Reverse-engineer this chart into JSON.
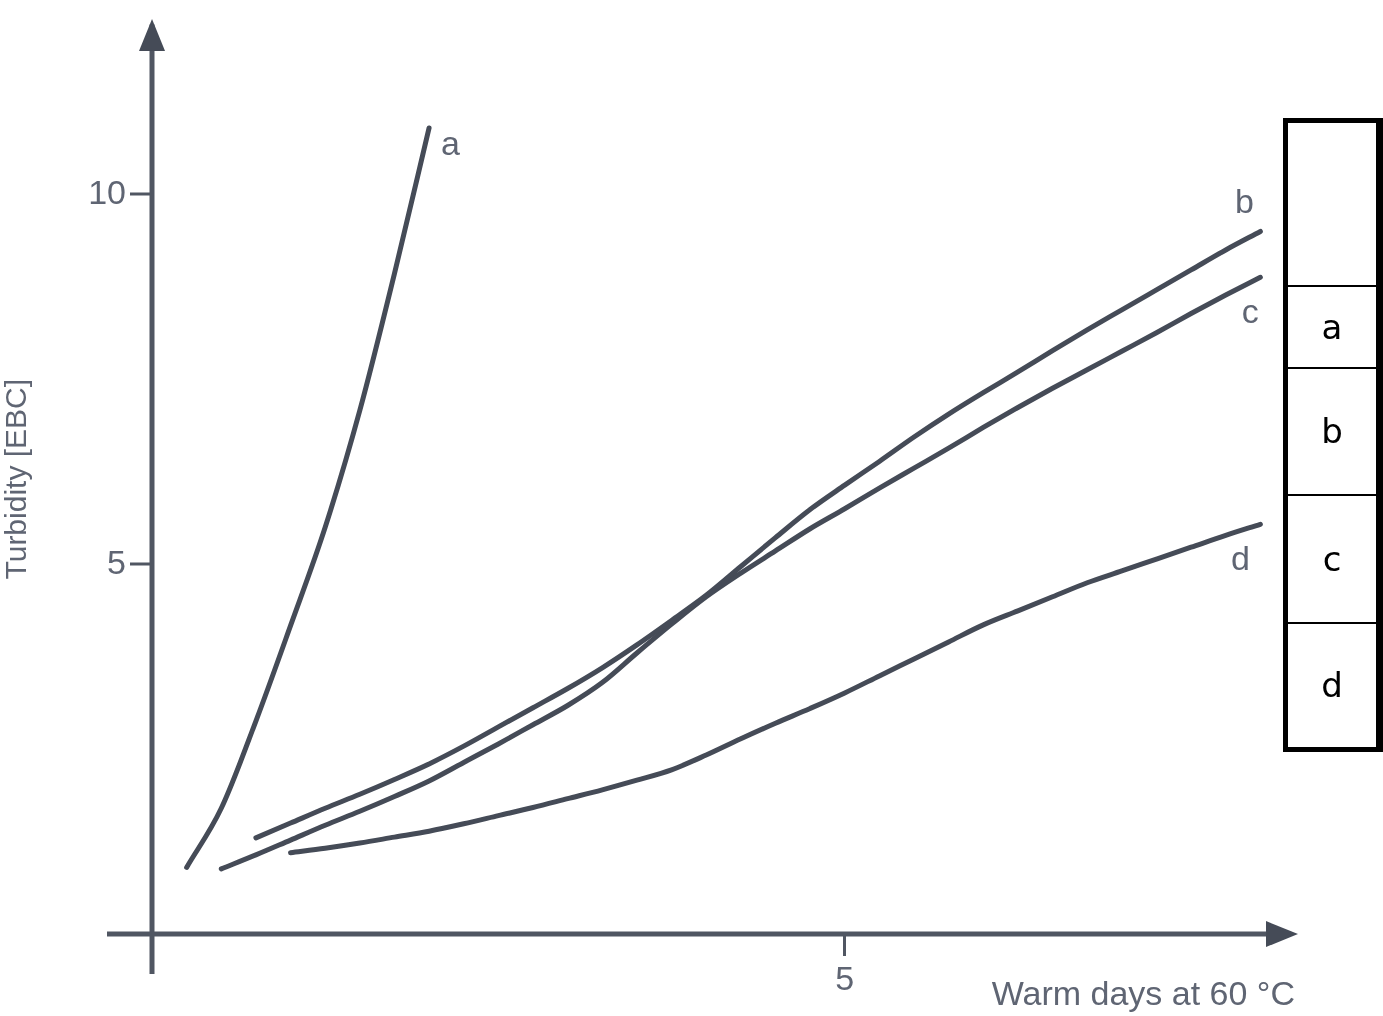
{
  "chart_data": {
    "type": "line",
    "xlabel": "Warm days at 60 °C",
    "ylabel": "Turbidity [EBC]",
    "categories": [
      null,
      null,
      null,
      null,
      null,
      null,
      null,
      null,
      null,
      null,
      null,
      null,
      null,
      null,
      null,
      null,
      null,
      null,
      null,
      null,
      "5",
      null,
      null,
      null,
      null,
      null,
      null,
      null,
      null,
      null,
      null,
      null,
      null,
      null
    ],
    "ylim": [
      0,
      12.3
    ],
    "yticks": [
      5,
      10
    ],
    "grid": false,
    "legend": false,
    "marker": "none",
    "line_style": "solid",
    "series": [
      {
        "name": "a",
        "color": "#454b57",
        "values": [
          null,
          0.9,
          1.7,
          2.88,
          4.17,
          5.5,
          7.08,
          8.93,
          10.9,
          null,
          null,
          null,
          null,
          null,
          null,
          null,
          null,
          null,
          null,
          null,
          null,
          null,
          null,
          null,
          null,
          null,
          null,
          null,
          null,
          null,
          null,
          null,
          null,
          null
        ]
      },
      {
        "name": "b",
        "color": "#454b57",
        "values": [
          null,
          null,
          null,
          1.3,
          1.5,
          1.7,
          1.89,
          2.09,
          2.3,
          2.54,
          2.8,
          3.06,
          3.32,
          3.6,
          3.91,
          4.24,
          4.58,
          4.97,
          5.36,
          5.74,
          6.07,
          6.39,
          6.72,
          7.03,
          7.32,
          7.6,
          7.89,
          8.17,
          8.44,
          8.71,
          8.98,
          9.25,
          9.5,
          null
        ]
      },
      {
        "name": "c",
        "color": "#454b57",
        "values": [
          null,
          null,
          0.88,
          1.07,
          1.27,
          1.47,
          1.66,
          1.86,
          2.07,
          2.32,
          2.57,
          2.83,
          3.09,
          3.4,
          3.8,
          4.19,
          4.56,
          4.88,
          5.18,
          5.48,
          5.75,
          6.03,
          6.3,
          6.57,
          6.85,
          7.12,
          7.38,
          7.63,
          7.88,
          8.13,
          8.39,
          8.64,
          8.88,
          null
        ]
      },
      {
        "name": "d",
        "color": "#454b57",
        "values": [
          null,
          null,
          null,
          null,
          1.1,
          1.16,
          1.23,
          1.31,
          1.39,
          1.49,
          1.6,
          1.71,
          1.83,
          1.95,
          2.08,
          2.22,
          2.42,
          2.64,
          2.85,
          3.05,
          3.26,
          3.49,
          3.72,
          3.95,
          4.18,
          4.37,
          4.56,
          4.75,
          4.91,
          5.07,
          5.23,
          5.39,
          5.54,
          null
        ]
      }
    ]
  }
}
